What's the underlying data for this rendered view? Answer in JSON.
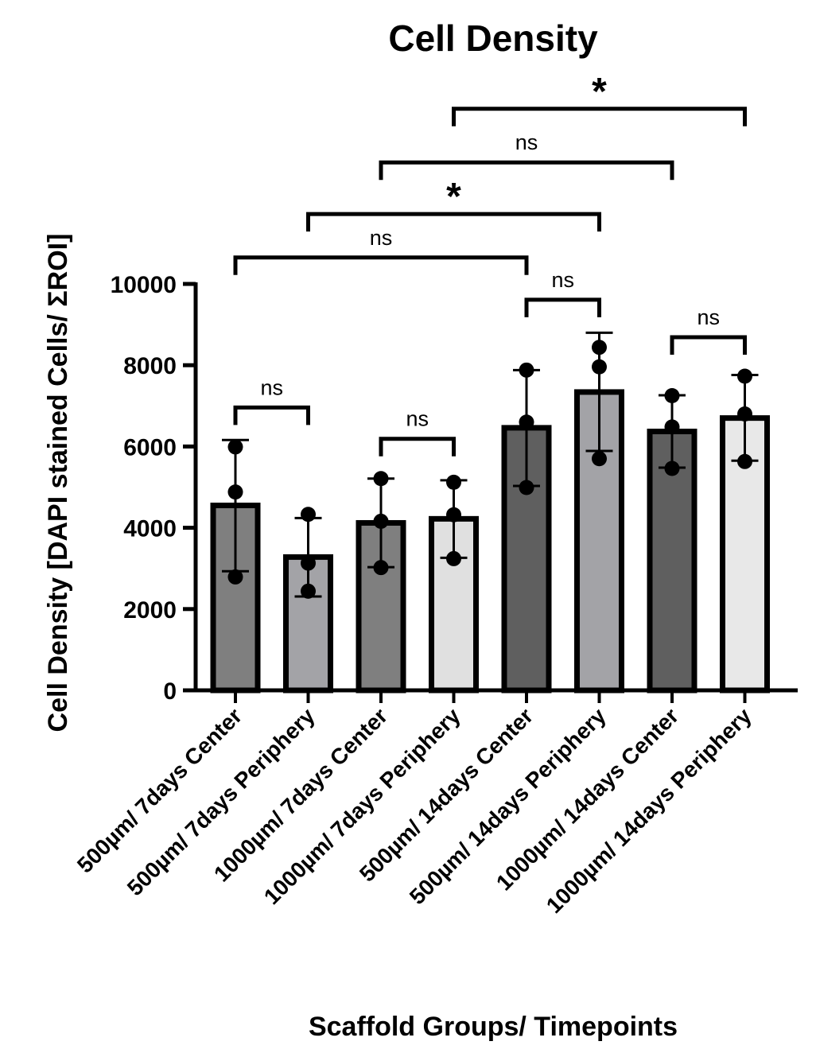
{
  "chart_data": {
    "type": "bar",
    "title": "Cell Density",
    "xlabel": "Scaffold Groups/ Timepoints",
    "ylabel": "Cell Density [DAPI stained Cells/ ΣROI]",
    "ylim": [
      0,
      10000
    ],
    "yticks": [
      0,
      2000,
      4000,
      6000,
      8000,
      10000
    ],
    "ytick_labels": [
      "0",
      "2000",
      "4000",
      "6000",
      "8000",
      "10000"
    ],
    "grid": false,
    "categories": [
      "500µm/ 7days Center",
      "500µm/ 7days Periphery",
      "1000µm/ 7days Center",
      "1000µm/ 7days Periphery",
      "500µm/ 14days Center",
      "500µm/ 14days Periphery",
      "1000µm/ 14days Center",
      "1000µm/ 14days Periphery"
    ],
    "values": [
      4550,
      3280,
      4120,
      4220,
      6460,
      7340,
      6370,
      6700
    ],
    "error_upper": [
      6160,
      4240,
      5210,
      5170,
      7880,
      8800,
      7260,
      7760
    ],
    "error_lower": [
      2930,
      2310,
      3030,
      3260,
      5030,
      5890,
      5480,
      5650
    ],
    "points": [
      [
        5990,
        4880,
        2790
      ],
      [
        4330,
        3130,
        2440
      ],
      [
        5210,
        4160,
        3020
      ],
      [
        5120,
        4320,
        3240
      ],
      [
        7880,
        6600,
        4990
      ],
      [
        8440,
        7960,
        5700
      ],
      [
        7250,
        6480,
        5460
      ],
      [
        7730,
        6800,
        5630
      ]
    ],
    "bar_colors": [
      "#7f7f7f",
      "#a3a3a7",
      "#7f7f7f",
      "#e0e0e0",
      "#5f5f5f",
      "#a3a3a7",
      "#5f5f5f",
      "#e8e8e8"
    ],
    "comparisons": [
      {
        "from": 0,
        "to": 1,
        "label": "ns",
        "level": 6960
      },
      {
        "from": 2,
        "to": 3,
        "label": "ns",
        "level": 6190
      },
      {
        "from": 4,
        "to": 5,
        "label": "ns",
        "level": 9610
      },
      {
        "from": 6,
        "to": 7,
        "label": "ns",
        "level": 8690
      },
      {
        "from": 0,
        "to": 4,
        "label": "ns",
        "level": 10650
      },
      {
        "from": 1,
        "to": 5,
        "label": "*",
        "level": 11720
      },
      {
        "from": 2,
        "to": 6,
        "label": "ns",
        "level": 12990
      },
      {
        "from": 3,
        "to": 7,
        "label": "*",
        "level": 14310
      }
    ]
  }
}
